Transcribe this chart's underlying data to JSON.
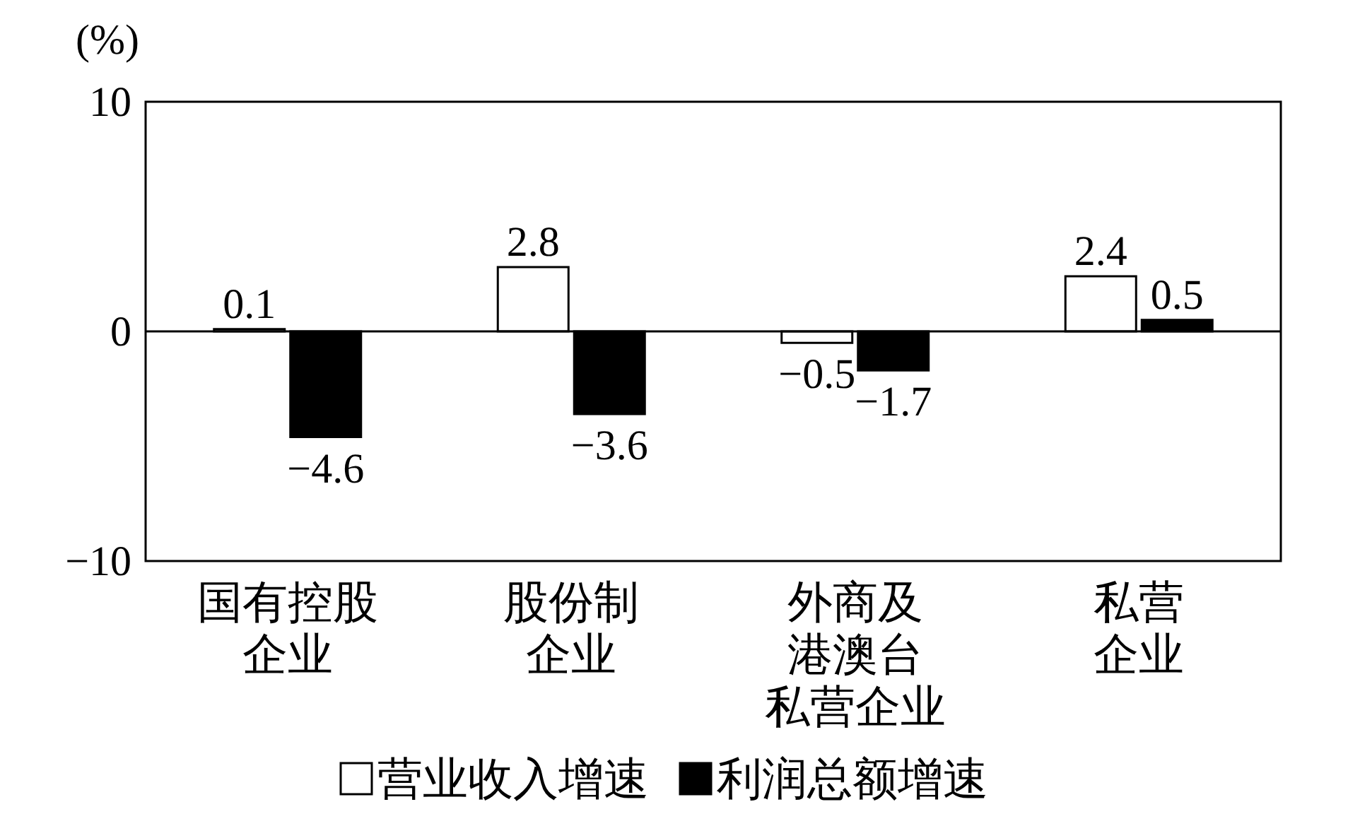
{
  "chart_data": {
    "type": "bar",
    "ylabel": "(%)",
    "categories": [
      "国有控股企业",
      "股份制企业",
      "外商及港澳台私营企业",
      "私营企业"
    ],
    "ref_lines": [
      {
        "axis": "y",
        "value": 0
      }
    ],
    "series": [
      {
        "name": "营业收入增速",
        "color": "#ffffff",
        "values": [
          0.1,
          2.8,
          -0.5,
          2.4
        ]
      },
      {
        "name": "利润总额增速",
        "color": "#000000",
        "values": [
          -4.6,
          -3.6,
          -1.7,
          0.5
        ]
      }
    ],
    "ylim": [
      -10,
      10
    ],
    "yticks": [
      {
        "value": -10,
        "label": "−10"
      },
      0,
      10
    ],
    "data_labels": true,
    "legend": "bottom"
  }
}
